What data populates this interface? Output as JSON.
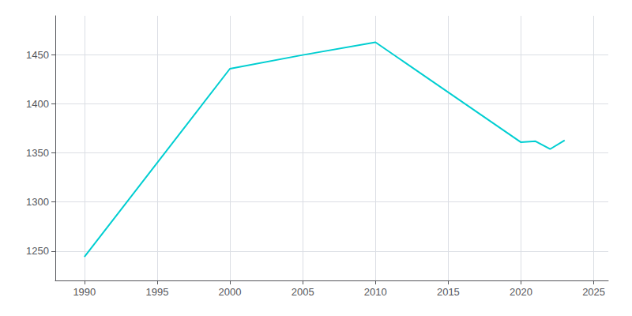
{
  "chart_data": {
    "type": "line",
    "x": [
      1990,
      2000,
      2005,
      2010,
      2020,
      2021,
      2022,
      2023
    ],
    "values": [
      1244,
      1436,
      1450,
      1463,
      1361,
      1362,
      1354,
      1363
    ],
    "color": "#00CED1",
    "xlim": [
      1988,
      2026
    ],
    "ylim": [
      1220,
      1490
    ],
    "xticks": [
      1990,
      1995,
      2000,
      2005,
      2010,
      2015,
      2020,
      2025
    ],
    "yticks": [
      1250,
      1300,
      1350,
      1400,
      1450
    ],
    "grid": true
  }
}
